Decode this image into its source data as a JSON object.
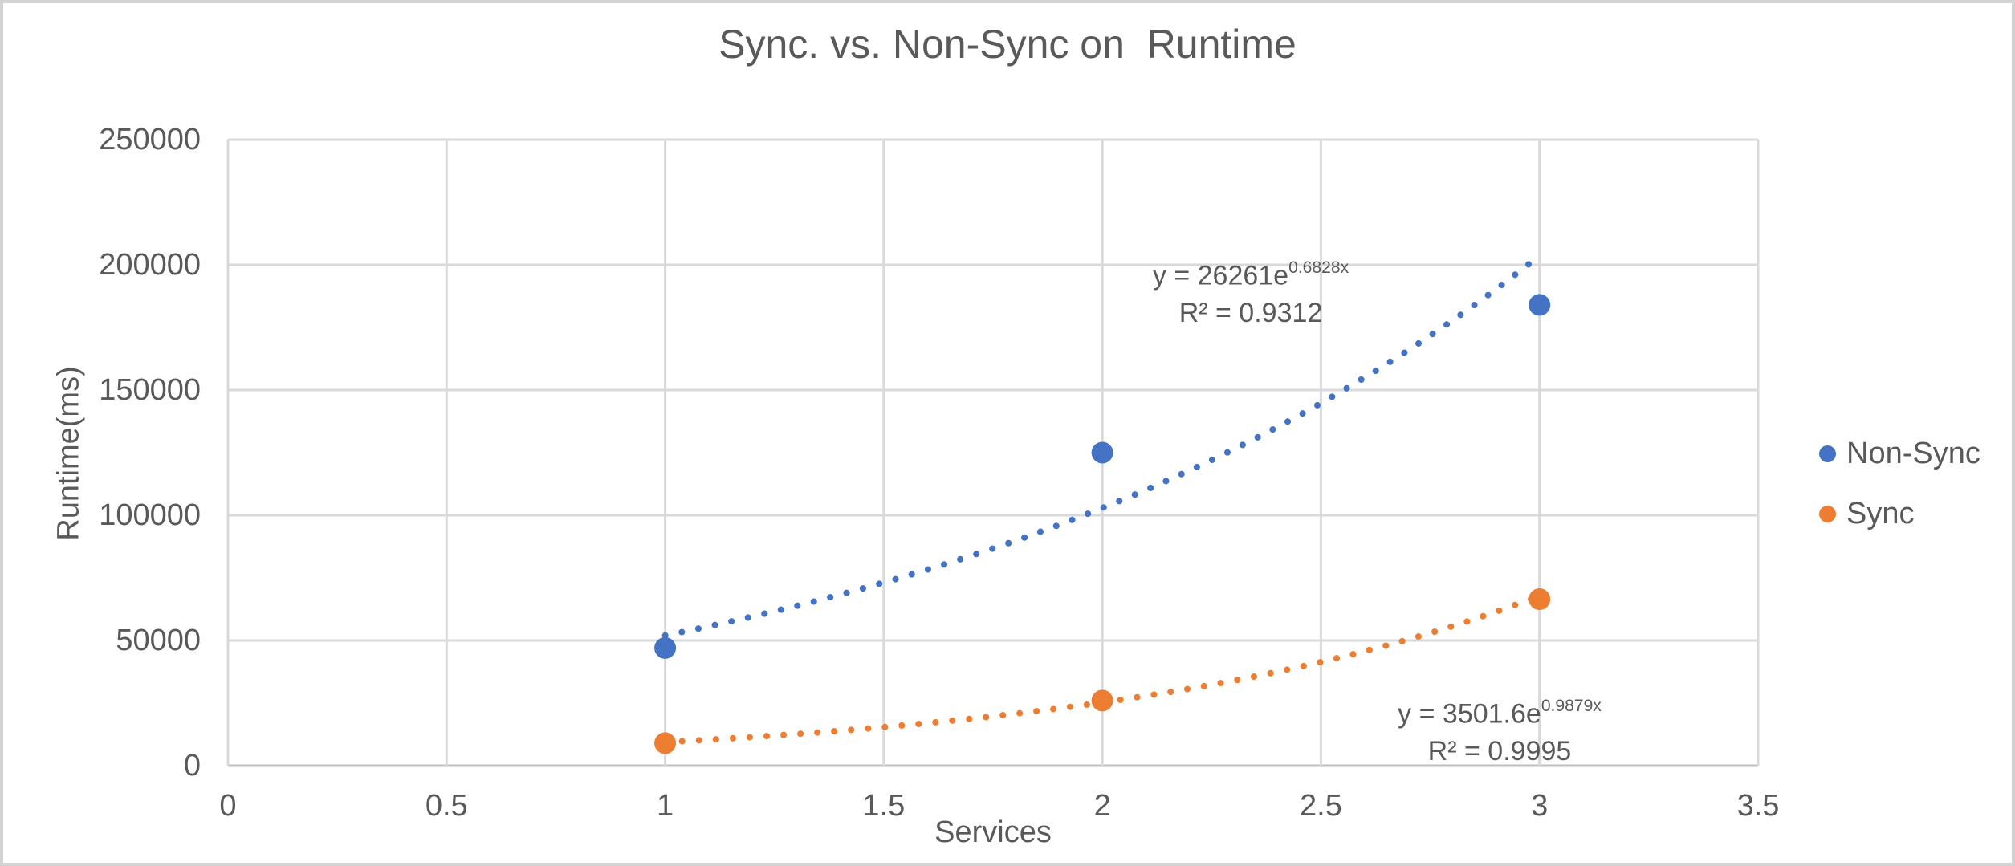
{
  "chart_data": {
    "type": "scatter",
    "title": "Sync. vs. Non-Sync on  Runtime",
    "xlabel": "Services",
    "ylabel": "Runtime(ms)",
    "xlim": [
      0,
      3.5
    ],
    "ylim": [
      0,
      250000
    ],
    "x_ticks": [
      0,
      0.5,
      1,
      1.5,
      2,
      2.5,
      3,
      3.5
    ],
    "x_tick_labels": [
      "0",
      "0.5",
      "1",
      "1.5",
      "2",
      "2.5",
      "3",
      "3.5"
    ],
    "y_ticks": [
      0,
      50000,
      100000,
      150000,
      200000,
      250000
    ],
    "y_tick_labels": [
      "0",
      "50000",
      "100000",
      "150000",
      "200000",
      "250000"
    ],
    "grid": true,
    "legend_position": "right",
    "series": [
      {
        "name": "Non-Sync",
        "color": "#4472C4",
        "x": [
          1,
          2,
          3
        ],
        "y": [
          47000,
          125000,
          184000
        ],
        "trendline": {
          "type": "exponential",
          "a": 26261,
          "b": 0.6828,
          "x_start": 1,
          "x_end": 3,
          "equation_base": "y = 26261e",
          "equation_exponent": "0.6828x",
          "r2_label": "R² = 0.9312"
        }
      },
      {
        "name": "Sync",
        "color": "#ED7D31",
        "x": [
          1,
          2,
          3
        ],
        "y": [
          9000,
          26000,
          66500
        ],
        "trendline": {
          "type": "exponential",
          "a": 3501.6,
          "b": 0.9879,
          "x_start": 1,
          "x_end": 3,
          "equation_base": "y = 3501.6e",
          "equation_exponent": "0.9879x",
          "r2_label": "R² = 0.9995"
        }
      }
    ]
  },
  "colors": {
    "text": "#595959",
    "gridline": "#D9D9D9",
    "axis_line": "#BFBFBF",
    "non_sync": "#4472C4",
    "sync": "#ED7D31",
    "frame": "#D2D2D2",
    "background": "#FFFFFF"
  }
}
